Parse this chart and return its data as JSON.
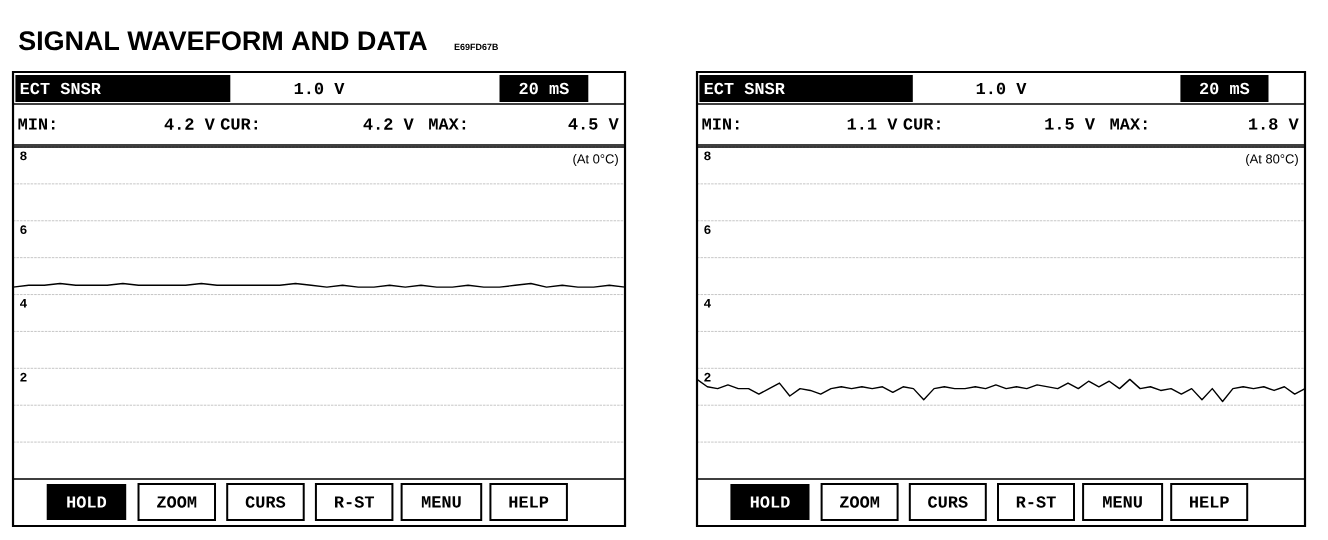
{
  "chart_data": [
    {
      "type": "line",
      "title": "SIGNAL WAVEFORM AND DATA",
      "subtitle": "E69FD67B",
      "categories": [
        null,
        null,
        null,
        null,
        null,
        null,
        null,
        null,
        null,
        null,
        null,
        null,
        null,
        null,
        null,
        null,
        null,
        null,
        null,
        null,
        null,
        null,
        null,
        null,
        null,
        null,
        null,
        null,
        null,
        null,
        null,
        null,
        null,
        null,
        null,
        null,
        null,
        null,
        null,
        null
      ],
      "series": [
        {
          "color": "#000000",
          "values": [
            4.2,
            4.25,
            4.25,
            4.3,
            4.25,
            4.25,
            4.25,
            4.3,
            4.25,
            4.25,
            4.25,
            4.25,
            4.3,
            4.25,
            4.25,
            4.25,
            4.25,
            4.25,
            4.3,
            4.25,
            4.2,
            4.25,
            4.2,
            4.2,
            4.25,
            4.2,
            4.25,
            4.2,
            4.2,
            4.25,
            4.2,
            4.2,
            4.25,
            4.3,
            4.2,
            4.25,
            4.2,
            4.2,
            4.25,
            4.2
          ]
        }
      ],
      "ylim": [
        -1,
        8
      ],
      "yticks": [
        {
          "value": 0,
          "label": null
        },
        {
          "value": 1,
          "label": null
        },
        2,
        {
          "value": 3,
          "label": null
        },
        4,
        {
          "value": 5,
          "label": null
        },
        6,
        {
          "value": 7,
          "label": null
        },
        8
      ],
      "grid": "y",
      "tick_labels": "y",
      "marker": "none",
      "line_style": "solid",
      "annotations": [
        "ECT SNSR",
        "1.0 V",
        "20 mS",
        "MIN:",
        "4.2 V",
        "CUR:",
        "4.2 V",
        "MAX:",
        "4.5 V",
        "(At 0°C)",
        "HOLD",
        "ZOOM",
        "CURS",
        "R-ST",
        "MENU",
        "HELP"
      ]
    },
    {
      "type": "line",
      "categories": [
        null,
        null,
        null,
        null,
        null,
        null,
        null,
        null,
        null,
        null,
        null,
        null,
        null,
        null,
        null,
        null,
        null,
        null,
        null,
        null,
        null,
        null,
        null,
        null,
        null,
        null,
        null,
        null,
        null,
        null,
        null,
        null,
        null,
        null,
        null,
        null,
        null,
        null,
        null,
        null,
        null,
        null,
        null,
        null,
        null,
        null,
        null,
        null,
        null,
        null,
        null,
        null,
        null,
        null,
        null,
        null,
        null,
        null,
        null,
        null
      ],
      "series": [
        {
          "color": "#000000",
          "values": [
            1.7,
            1.5,
            1.45,
            1.55,
            1.45,
            1.45,
            1.3,
            1.45,
            1.6,
            1.25,
            1.45,
            1.4,
            1.3,
            1.45,
            1.5,
            1.45,
            1.5,
            1.45,
            1.5,
            1.35,
            1.5,
            1.45,
            1.15,
            1.45,
            1.5,
            1.45,
            1.45,
            1.5,
            1.45,
            1.55,
            1.45,
            1.5,
            1.45,
            1.55,
            1.5,
            1.45,
            1.6,
            1.45,
            1.65,
            1.5,
            1.65,
            1.45,
            1.7,
            1.45,
            1.5,
            1.4,
            1.45,
            1.3,
            1.45,
            1.15,
            1.45,
            1.1,
            1.45,
            1.5,
            1.45,
            1.5,
            1.4,
            1.5,
            1.3,
            1.45
          ]
        }
      ],
      "ylim": [
        -1,
        8
      ],
      "yticks": [
        {
          "value": 0,
          "label": null
        },
        {
          "value": 1,
          "label": null
        },
        2,
        {
          "value": 3,
          "label": null
        },
        4,
        {
          "value": 5,
          "label": null
        },
        6,
        {
          "value": 7,
          "label": null
        },
        8
      ],
      "grid": "y",
      "tick_labels": "y",
      "marker": "none",
      "line_style": "solid",
      "annotations": [
        "ECT SNSR",
        "1.0 V",
        "20 mS",
        "MIN:",
        "1.1 V",
        "CUR:",
        "1.5 V",
        "MAX:",
        "1.8 V",
        "(At 80°C)",
        "HOLD",
        "ZOOM",
        "CURS",
        "R-ST",
        "MENU",
        "HELP"
      ]
    }
  ]
}
